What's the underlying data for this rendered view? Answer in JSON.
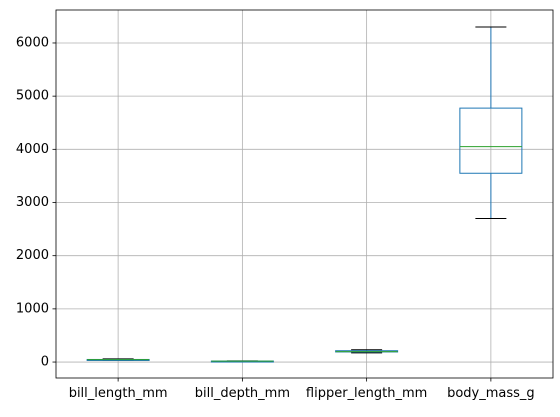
{
  "chart_data": {
    "type": "boxplot",
    "title": "",
    "xlabel": "",
    "ylabel": "",
    "grid": true,
    "categories": [
      "bill_length_mm",
      "bill_depth_mm",
      "flipper_length_mm",
      "body_mass_g"
    ],
    "ylim": [
      -300,
      6620
    ],
    "yticks": [
      0,
      1000,
      2000,
      3000,
      4000,
      5000,
      6000
    ],
    "ytick_labels": [
      "0",
      "1000",
      "2000",
      "3000",
      "4000",
      "5000",
      "6000"
    ],
    "boxes": [
      {
        "name": "bill_length_mm",
        "whislo": 32.1,
        "q1": 39.2,
        "med": 44.45,
        "q3": 48.5,
        "whishi": 59.6
      },
      {
        "name": "bill_depth_mm",
        "whislo": 13.1,
        "q1": 15.6,
        "med": 17.3,
        "q3": 18.7,
        "whishi": 21.5
      },
      {
        "name": "flipper_length_mm",
        "whislo": 172,
        "q1": 190,
        "med": 197,
        "q3": 213,
        "whishi": 231
      },
      {
        "name": "body_mass_g",
        "whislo": 2700,
        "q1": 3550,
        "med": 4050,
        "q3": 4775,
        "whishi": 6300
      }
    ],
    "colors": {
      "box": "#1f77b4",
      "median": "#2ca02c",
      "cap": "#000000",
      "grid": "#b0b0b0",
      "axis": "#000000"
    }
  }
}
